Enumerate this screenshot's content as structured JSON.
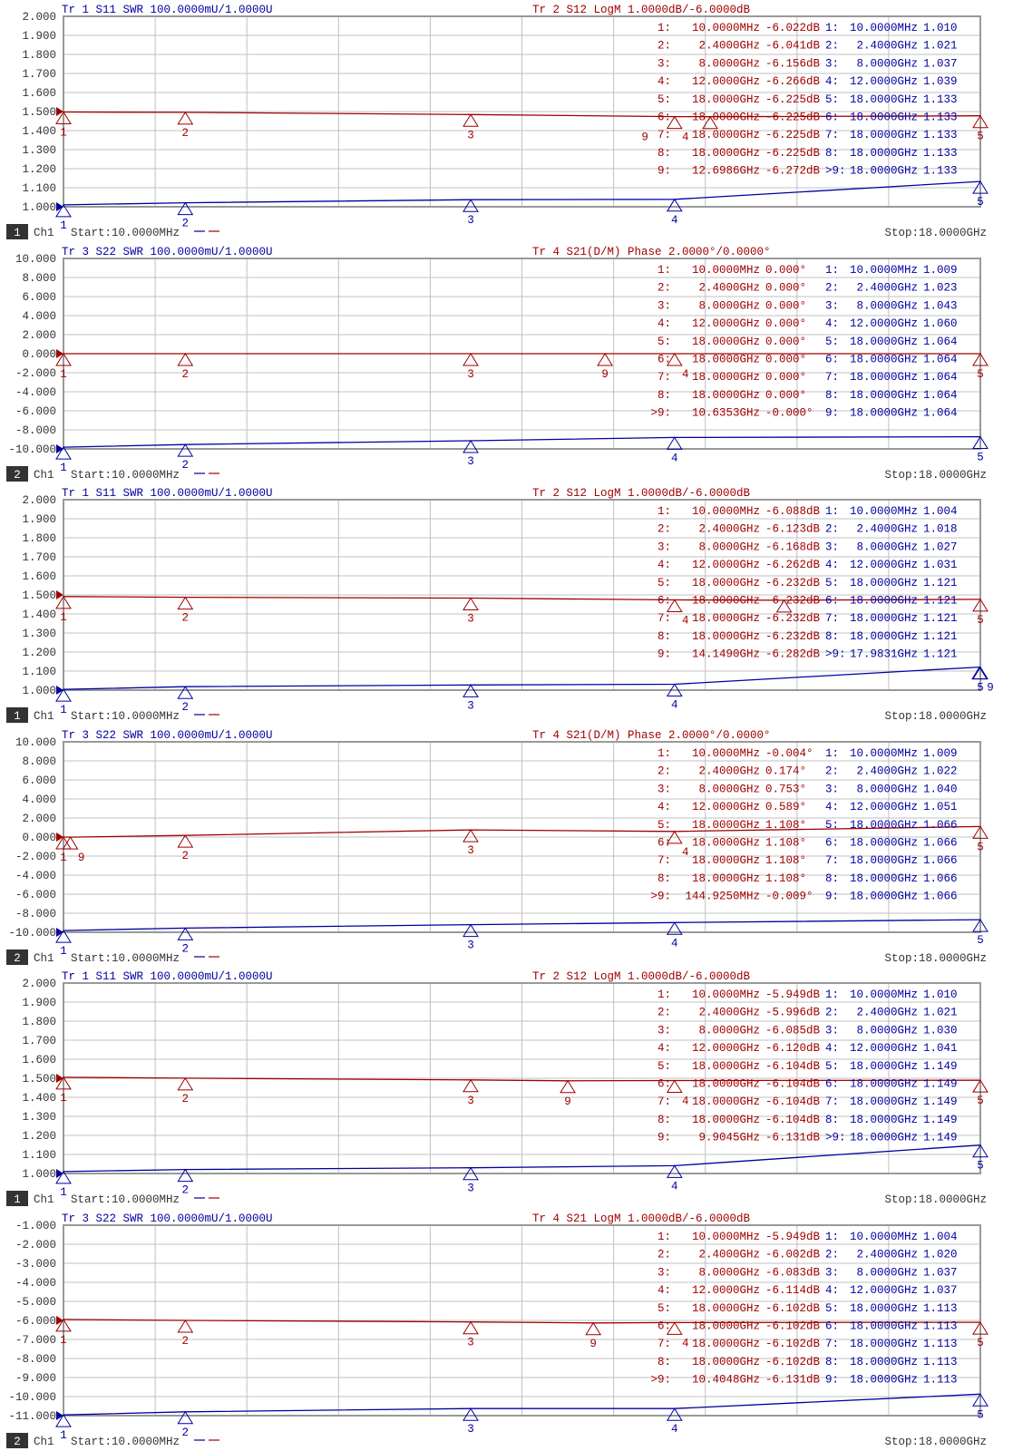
{
  "colors": {
    "trace_a": "#0000a0",
    "trace_b": "#a00000",
    "grid": "#c0c0c0",
    "frame": "#999999",
    "axis_text": "#333333"
  },
  "chart_data": [
    {
      "type": "line",
      "channel_box": "1",
      "channel": "Ch1",
      "start": "Start:10.0000MHz",
      "stop": "Stop:18.0000GHz",
      "xlim_ghz": [
        0.01,
        18
      ],
      "title_a": "Tr 1  S11 SWR 100.0000mU/1.0000U",
      "title_b": "Tr 2  S12 LogM 1.0000dB/-6.0000dB",
      "yticks": [
        "2.000",
        "1.900",
        "1.800",
        "1.700",
        "1.600",
        "1.500",
        "1.400",
        "1.300",
        "1.200",
        "1.100",
        "1.000"
      ],
      "scale_a": {
        "per_div": 0.1,
        "ref": 1.0
      },
      "scale_b": {
        "per_div": 1.0,
        "ref": -6.0
      },
      "markers_b": [
        {
          "label": "1:",
          "freq": "10.0000MHz",
          "value": "-6.022dB"
        },
        {
          "label": "2:",
          "freq": "2.4000GHz",
          "value": "-6.041dB"
        },
        {
          "label": "3:",
          "freq": "8.0000GHz",
          "value": "-6.156dB"
        },
        {
          "label": "4:",
          "freq": "12.0000GHz",
          "value": "-6.266dB"
        },
        {
          "label": "5:",
          "freq": "18.0000GHz",
          "value": "-6.225dB"
        },
        {
          "label": "6:",
          "freq": "18.0000GHz",
          "value": "-6.225dB"
        },
        {
          "label": "7:",
          "freq": "18.0000GHz",
          "value": "-6.225dB"
        },
        {
          "label": "8:",
          "freq": "18.0000GHz",
          "value": "-6.225dB"
        },
        {
          "label": "9:",
          "freq": "12.6986GHz",
          "value": "-6.272dB"
        }
      ],
      "markers_a": [
        {
          "label": "1:",
          "freq": "10.0000MHz",
          "value": "1.010"
        },
        {
          "label": "2:",
          "freq": "2.4000GHz",
          "value": "1.021"
        },
        {
          "label": "3:",
          "freq": "8.0000GHz",
          "value": "1.037"
        },
        {
          "label": "4:",
          "freq": "12.0000GHz",
          "value": "1.039"
        },
        {
          "label": "5:",
          "freq": "18.0000GHz",
          "value": "1.133"
        },
        {
          "label": "6:",
          "freq": "18.0000GHz",
          "value": "1.133"
        },
        {
          "label": "7:",
          "freq": "18.0000GHz",
          "value": "1.133"
        },
        {
          "label": "8:",
          "freq": "18.0000GHz",
          "value": "1.133"
        },
        {
          "label": ">9:",
          "freq": "18.0000GHz",
          "value": "1.133"
        }
      ]
    },
    {
      "type": "line",
      "channel_box": "2",
      "channel": "Ch1",
      "start": "Start:10.0000MHz",
      "stop": "Stop:18.0000GHz",
      "xlim_ghz": [
        0.01,
        18
      ],
      "title_a": "Tr 3  S22 SWR 100.0000mU/1.0000U",
      "title_b": "Tr 4  S21(D/M) Phase 2.0000°/0.0000°",
      "yticks": [
        "10.000",
        "8.000",
        "6.000",
        "4.000",
        "2.000",
        "0.000",
        "-2.000",
        "-4.000",
        "-6.000",
        "-8.000",
        "-10.000"
      ],
      "scale_a": {
        "per_div": 0.1,
        "ref": 1.0
      },
      "scale_b": {
        "per_div": 2.0,
        "ref": 0.0
      },
      "markers_b": [
        {
          "label": "1:",
          "freq": "10.0000MHz",
          "value": "0.000°"
        },
        {
          "label": "2:",
          "freq": "2.4000GHz",
          "value": "0.000°"
        },
        {
          "label": "3:",
          "freq": "8.0000GHz",
          "value": "0.000°"
        },
        {
          "label": "4:",
          "freq": "12.0000GHz",
          "value": "0.000°"
        },
        {
          "label": "5:",
          "freq": "18.0000GHz",
          "value": "0.000°"
        },
        {
          "label": "6:",
          "freq": "18.0000GHz",
          "value": "0.000°"
        },
        {
          "label": "7:",
          "freq": "18.0000GHz",
          "value": "0.000°"
        },
        {
          "label": "8:",
          "freq": "18.0000GHz",
          "value": "0.000°"
        },
        {
          "label": ">9:",
          "freq": "10.6353GHz",
          "value": "-0.000°"
        }
      ],
      "markers_a": [
        {
          "label": "1:",
          "freq": "10.0000MHz",
          "value": "1.009"
        },
        {
          "label": "2:",
          "freq": "2.4000GHz",
          "value": "1.023"
        },
        {
          "label": "3:",
          "freq": "8.0000GHz",
          "value": "1.043"
        },
        {
          "label": "4:",
          "freq": "12.0000GHz",
          "value": "1.060"
        },
        {
          "label": "5:",
          "freq": "18.0000GHz",
          "value": "1.064"
        },
        {
          "label": "6:",
          "freq": "18.0000GHz",
          "value": "1.064"
        },
        {
          "label": "7:",
          "freq": "18.0000GHz",
          "value": "1.064"
        },
        {
          "label": "8:",
          "freq": "18.0000GHz",
          "value": "1.064"
        },
        {
          "label": "9:",
          "freq": "18.0000GHz",
          "value": "1.064"
        }
      ]
    },
    {
      "type": "line",
      "channel_box": "1",
      "channel": "Ch1",
      "start": "Start:10.0000MHz",
      "stop": "Stop:18.0000GHz",
      "xlim_ghz": [
        0.01,
        18
      ],
      "title_a": "Tr 1  S11 SWR 100.0000mU/1.0000U",
      "title_b": "Tr 2  S12 LogM 1.0000dB/-6.0000dB",
      "yticks": [
        "2.000",
        "1.900",
        "1.800",
        "1.700",
        "1.600",
        "1.500",
        "1.400",
        "1.300",
        "1.200",
        "1.100",
        "1.000"
      ],
      "scale_a": {
        "per_div": 0.1,
        "ref": 1.0
      },
      "scale_b": {
        "per_div": 1.0,
        "ref": -6.0
      },
      "markers_b": [
        {
          "label": "1:",
          "freq": "10.0000MHz",
          "value": "-6.088dB"
        },
        {
          "label": "2:",
          "freq": "2.4000GHz",
          "value": "-6.123dB"
        },
        {
          "label": "3:",
          "freq": "8.0000GHz",
          "value": "-6.168dB"
        },
        {
          "label": "4:",
          "freq": "12.0000GHz",
          "value": "-6.262dB"
        },
        {
          "label": "5:",
          "freq": "18.0000GHz",
          "value": "-6.232dB"
        },
        {
          "label": "6:",
          "freq": "18.0000GHz",
          "value": "-6.232dB"
        },
        {
          "label": "7:",
          "freq": "18.0000GHz",
          "value": "-6.232dB"
        },
        {
          "label": "8:",
          "freq": "18.0000GHz",
          "value": "-6.232dB"
        },
        {
          "label": "9:",
          "freq": "14.1490GHz",
          "value": "-6.282dB"
        }
      ],
      "markers_a": [
        {
          "label": "1:",
          "freq": "10.0000MHz",
          "value": "1.004"
        },
        {
          "label": "2:",
          "freq": "2.4000GHz",
          "value": "1.018"
        },
        {
          "label": "3:",
          "freq": "8.0000GHz",
          "value": "1.027"
        },
        {
          "label": "4:",
          "freq": "12.0000GHz",
          "value": "1.031"
        },
        {
          "label": "5:",
          "freq": "18.0000GHz",
          "value": "1.121"
        },
        {
          "label": "6:",
          "freq": "18.0000GHz",
          "value": "1.121"
        },
        {
          "label": "7:",
          "freq": "18.0000GHz",
          "value": "1.121"
        },
        {
          "label": "8:",
          "freq": "18.0000GHz",
          "value": "1.121"
        },
        {
          "label": ">9:",
          "freq": "17.9831GHz",
          "value": "1.121"
        }
      ]
    },
    {
      "type": "line",
      "channel_box": "2",
      "channel": "Ch1",
      "start": "Start:10.0000MHz",
      "stop": "Stop:18.0000GHz",
      "xlim_ghz": [
        0.01,
        18
      ],
      "title_a": "Tr 3  S22 SWR 100.0000mU/1.0000U",
      "title_b": "Tr 4  S21(D/M) Phase 2.0000°/0.0000°",
      "yticks": [
        "10.000",
        "8.000",
        "6.000",
        "4.000",
        "2.000",
        "0.000",
        "-2.000",
        "-4.000",
        "-6.000",
        "-8.000",
        "-10.000"
      ],
      "scale_a": {
        "per_div": 0.1,
        "ref": 1.0
      },
      "scale_b": {
        "per_div": 2.0,
        "ref": 0.0
      },
      "markers_b": [
        {
          "label": "1:",
          "freq": "10.0000MHz",
          "value": "-0.004°"
        },
        {
          "label": "2:",
          "freq": "2.4000GHz",
          "value": "0.174°"
        },
        {
          "label": "3:",
          "freq": "8.0000GHz",
          "value": "0.753°"
        },
        {
          "label": "4:",
          "freq": "12.0000GHz",
          "value": "0.589°"
        },
        {
          "label": "5:",
          "freq": "18.0000GHz",
          "value": "1.108°"
        },
        {
          "label": "6:",
          "freq": "18.0000GHz",
          "value": "1.108°"
        },
        {
          "label": "7:",
          "freq": "18.0000GHz",
          "value": "1.108°"
        },
        {
          "label": "8:",
          "freq": "18.0000GHz",
          "value": "1.108°"
        },
        {
          "label": ">9:",
          "freq": "144.9250MHz",
          "value": "-0.009°"
        }
      ],
      "markers_a": [
        {
          "label": "1:",
          "freq": "10.0000MHz",
          "value": "1.009"
        },
        {
          "label": "2:",
          "freq": "2.4000GHz",
          "value": "1.022"
        },
        {
          "label": "3:",
          "freq": "8.0000GHz",
          "value": "1.040"
        },
        {
          "label": "4:",
          "freq": "12.0000GHz",
          "value": "1.051"
        },
        {
          "label": "5:",
          "freq": "18.0000GHz",
          "value": "1.066"
        },
        {
          "label": "6:",
          "freq": "18.0000GHz",
          "value": "1.066"
        },
        {
          "label": "7:",
          "freq": "18.0000GHz",
          "value": "1.066"
        },
        {
          "label": "8:",
          "freq": "18.0000GHz",
          "value": "1.066"
        },
        {
          "label": "9:",
          "freq": "18.0000GHz",
          "value": "1.066"
        }
      ]
    },
    {
      "type": "line",
      "channel_box": "1",
      "channel": "Ch1",
      "start": "Start:10.0000MHz",
      "stop": "Stop:18.0000GHz",
      "xlim_ghz": [
        0.01,
        18
      ],
      "title_a": "Tr 1  S11 SWR 100.0000mU/1.0000U",
      "title_b": "Tr 2  S12 LogM 1.0000dB/-6.0000dB",
      "yticks": [
        "2.000",
        "1.900",
        "1.800",
        "1.700",
        "1.600",
        "1.500",
        "1.400",
        "1.300",
        "1.200",
        "1.100",
        "1.000"
      ],
      "scale_a": {
        "per_div": 0.1,
        "ref": 1.0
      },
      "scale_b": {
        "per_div": 1.0,
        "ref": -6.0
      },
      "markers_b": [
        {
          "label": "1:",
          "freq": "10.0000MHz",
          "value": "-5.949dB"
        },
        {
          "label": "2:",
          "freq": "2.4000GHz",
          "value": "-5.996dB"
        },
        {
          "label": "3:",
          "freq": "8.0000GHz",
          "value": "-6.085dB"
        },
        {
          "label": "4:",
          "freq": "12.0000GHz",
          "value": "-6.120dB"
        },
        {
          "label": "5:",
          "freq": "18.0000GHz",
          "value": "-6.104dB"
        },
        {
          "label": "6:",
          "freq": "18.0000GHz",
          "value": "-6.104dB"
        },
        {
          "label": "7:",
          "freq": "18.0000GHz",
          "value": "-6.104dB"
        },
        {
          "label": "8:",
          "freq": "18.0000GHz",
          "value": "-6.104dB"
        },
        {
          "label": "9:",
          "freq": "9.9045GHz",
          "value": "-6.131dB"
        }
      ],
      "markers_a": [
        {
          "label": "1:",
          "freq": "10.0000MHz",
          "value": "1.010"
        },
        {
          "label": "2:",
          "freq": "2.4000GHz",
          "value": "1.021"
        },
        {
          "label": "3:",
          "freq": "8.0000GHz",
          "value": "1.030"
        },
        {
          "label": "4:",
          "freq": "12.0000GHz",
          "value": "1.041"
        },
        {
          "label": "5:",
          "freq": "18.0000GHz",
          "value": "1.149"
        },
        {
          "label": "6:",
          "freq": "18.0000GHz",
          "value": "1.149"
        },
        {
          "label": "7:",
          "freq": "18.0000GHz",
          "value": "1.149"
        },
        {
          "label": "8:",
          "freq": "18.0000GHz",
          "value": "1.149"
        },
        {
          "label": ">9:",
          "freq": "18.0000GHz",
          "value": "1.149"
        }
      ]
    },
    {
      "type": "line",
      "channel_box": "2",
      "channel": "Ch1",
      "start": "Start:10.0000MHz",
      "stop": "Stop:18.0000GHz",
      "xlim_ghz": [
        0.01,
        18
      ],
      "title_a": "Tr 3  S22 SWR 100.0000mU/1.0000U",
      "title_b": "Tr 4  S21 LogM 1.0000dB/-6.0000dB",
      "yticks": [
        "-1.000",
        "-2.000",
        "-3.000",
        "-4.000",
        "-5.000",
        "-6.000",
        "-7.000",
        "-8.000",
        "-9.000",
        "-10.000",
        "-11.000"
      ],
      "scale_a": {
        "per_div": 0.1,
        "ref": 1.0
      },
      "scale_b": {
        "per_div": 1.0,
        "ref": -6.0
      },
      "markers_b": [
        {
          "label": "1:",
          "freq": "10.0000MHz",
          "value": "-5.949dB"
        },
        {
          "label": "2:",
          "freq": "2.4000GHz",
          "value": "-6.002dB"
        },
        {
          "label": "3:",
          "freq": "8.0000GHz",
          "value": "-6.083dB"
        },
        {
          "label": "4:",
          "freq": "12.0000GHz",
          "value": "-6.114dB"
        },
        {
          "label": "5:",
          "freq": "18.0000GHz",
          "value": "-6.102dB"
        },
        {
          "label": "6:",
          "freq": "18.0000GHz",
          "value": "-6.102dB"
        },
        {
          "label": "7:",
          "freq": "18.0000GHz",
          "value": "-6.102dB"
        },
        {
          "label": "8:",
          "freq": "18.0000GHz",
          "value": "-6.102dB"
        },
        {
          "label": ">9:",
          "freq": "10.4048GHz",
          "value": "-6.131dB"
        }
      ],
      "markers_a": [
        {
          "label": "1:",
          "freq": "10.0000MHz",
          "value": "1.004"
        },
        {
          "label": "2:",
          "freq": "2.4000GHz",
          "value": "1.020"
        },
        {
          "label": "3:",
          "freq": "8.0000GHz",
          "value": "1.037"
        },
        {
          "label": "4:",
          "freq": "12.0000GHz",
          "value": "1.037"
        },
        {
          "label": "5:",
          "freq": "18.0000GHz",
          "value": "1.113"
        },
        {
          "label": "6:",
          "freq": "18.0000GHz",
          "value": "1.113"
        },
        {
          "label": "7:",
          "freq": "18.0000GHz",
          "value": "1.113"
        },
        {
          "label": "8:",
          "freq": "18.0000GHz",
          "value": "1.113"
        },
        {
          "label": "9:",
          "freq": "18.0000GHz",
          "value": "1.113"
        }
      ]
    }
  ]
}
